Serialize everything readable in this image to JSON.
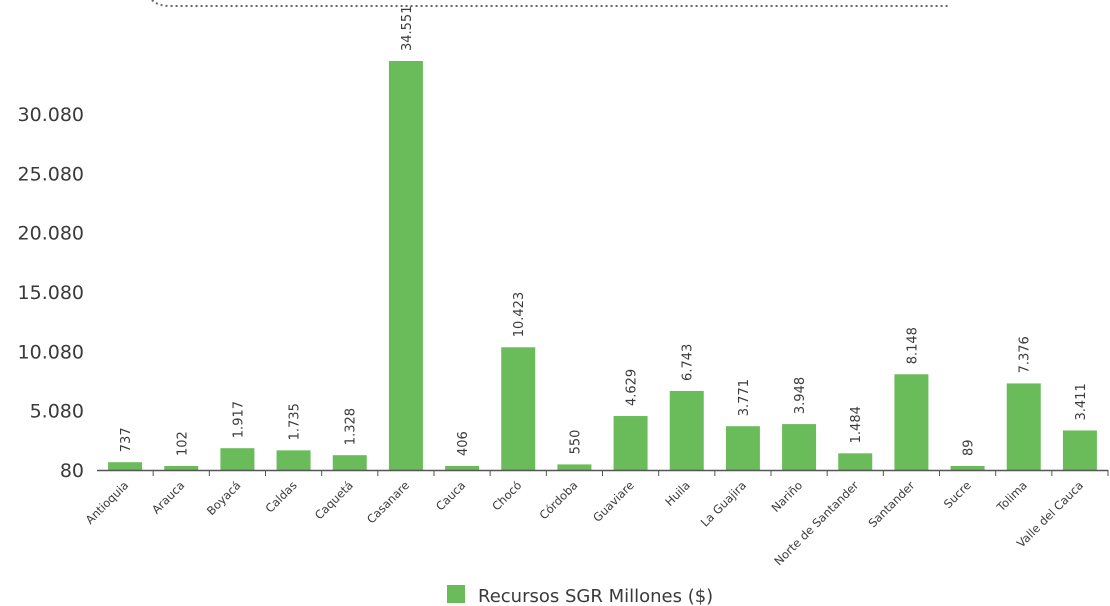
{
  "chart_data": {
    "type": "bar",
    "categories": [
      "Antioquia",
      "Arauca",
      "Boyacá",
      "Caldas",
      "Caquetá",
      "Casanare",
      "Cauca",
      "Chocó",
      "Córdoba",
      "Guaviare",
      "Huila",
      "La Guajira",
      "Nariño",
      "Norte de Santander",
      "Santander",
      "Sucre",
      "Tolima",
      "Valle del Cauca"
    ],
    "series": [
      {
        "name": "Recursos SGR Millones ($)",
        "values": [
          737,
          102,
          1917,
          1735,
          1328,
          34551,
          406,
          10423,
          550,
          4629,
          6743,
          3771,
          3948,
          1484,
          8148,
          89,
          7376,
          3411
        ],
        "value_labels": [
          "737",
          "102",
          "1.917",
          "1.735",
          "1.328",
          "34.551",
          "406",
          "10.423",
          "550",
          "4.629",
          "6.743",
          "3.771",
          "3.948",
          "1.484",
          "8.148",
          "89",
          "7.376",
          "3.411"
        ],
        "color": "#6abb59"
      }
    ],
    "y_ticks": [
      80,
      5080,
      10080,
      15080,
      20080,
      25080,
      30080
    ],
    "y_tick_labels": [
      "80",
      "5.080",
      "10.080",
      "15.080",
      "20.080",
      "25.080",
      "30.080"
    ],
    "ylim": [
      80,
      34551
    ],
    "grid": false,
    "legend": "bottom-center",
    "axis_color": "#555555",
    "decoration_color": "#666666"
  }
}
